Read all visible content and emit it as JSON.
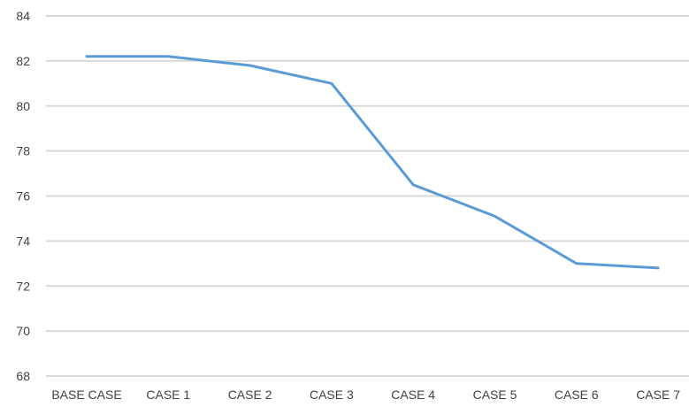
{
  "chart_data": {
    "type": "line",
    "title": "",
    "xlabel": "",
    "ylabel": "",
    "categories": [
      "BASE CASE",
      "CASE 1",
      "CASE 2",
      "CASE 3",
      "CASE 4",
      "CASE 5",
      "CASE 6",
      "CASE 7"
    ],
    "series": [
      {
        "values": [
          82.2,
          82.2,
          81.8,
          81.0,
          76.5,
          75.1,
          73.0,
          72.8
        ]
      }
    ],
    "ylim": [
      68,
      84
    ],
    "yticks": [
      68,
      70,
      72,
      74,
      76,
      78,
      80,
      82,
      84
    ],
    "grid": true,
    "legend": "none",
    "colors": {
      "series": "#5b9bd5",
      "grid": "#d9d9d9",
      "text": "#404040"
    }
  }
}
